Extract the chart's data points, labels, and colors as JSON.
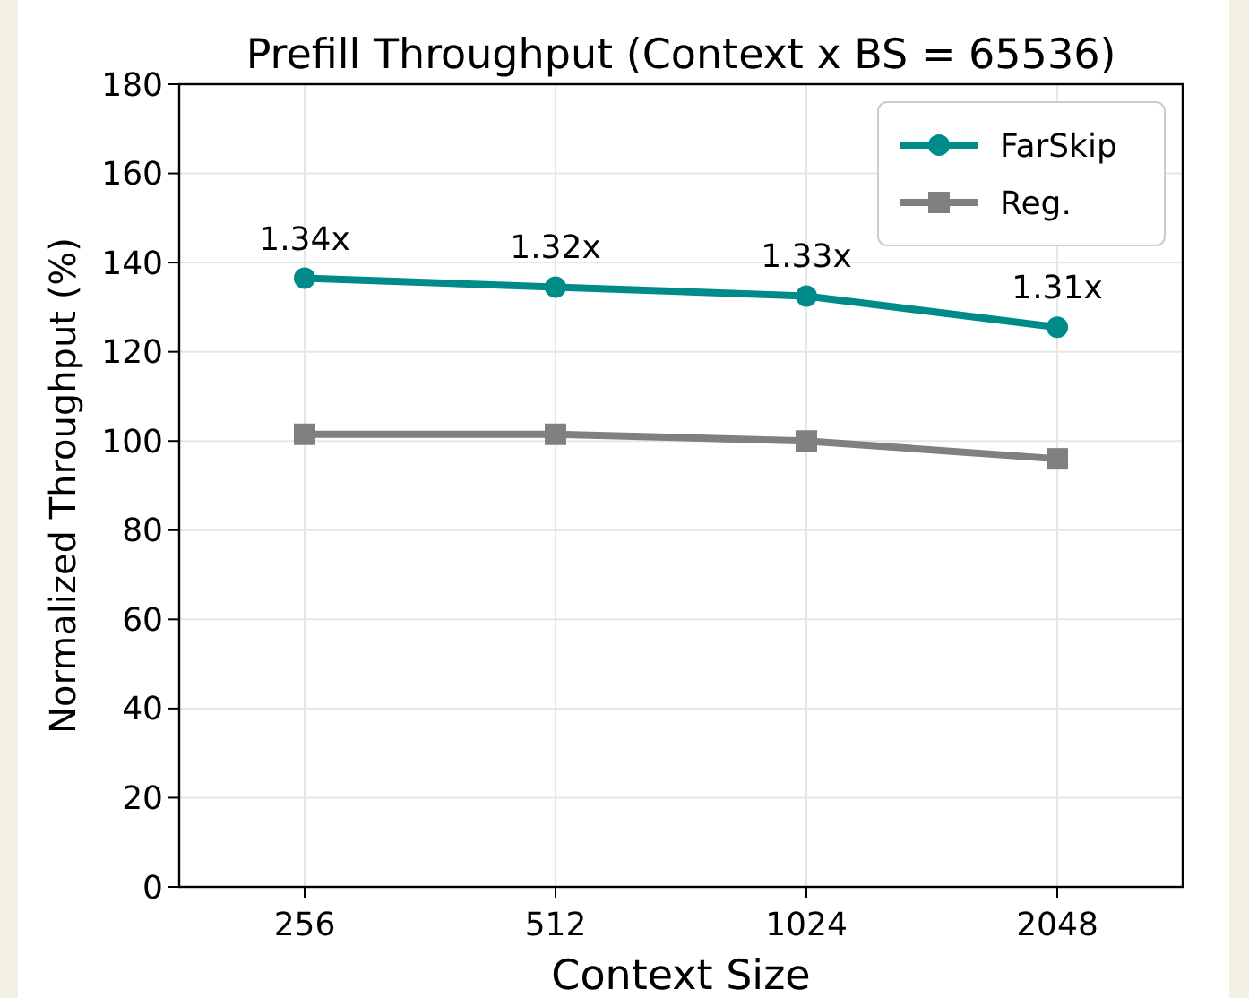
{
  "chart_data": {
    "type": "line",
    "title": "Prefill Throughput (Context x BS = 65536)",
    "xlabel": "Context Size",
    "ylabel": "Normalized Throughput (%)",
    "categories": [
      "256",
      "512",
      "1024",
      "2048"
    ],
    "series": [
      {
        "name": "FarSkip",
        "color": "#008b8b",
        "marker": "circle",
        "values": [
          136.5,
          134.5,
          132.5,
          125.5
        ]
      },
      {
        "name": "Reg.",
        "color": "#808080",
        "marker": "square",
        "values": [
          101.5,
          101.5,
          100,
          96
        ]
      }
    ],
    "ylim": [
      0,
      180
    ],
    "yticks": [
      0,
      20,
      40,
      60,
      80,
      100,
      120,
      140,
      160,
      180
    ],
    "grid": true,
    "legend": "top right",
    "annotations": [
      {
        "text": "1.34x",
        "x": "256",
        "y": 136.5
      },
      {
        "text": "1.32x",
        "x": "512",
        "y": 134.5
      },
      {
        "text": "1.33x",
        "x": "1024",
        "y": 132.5
      },
      {
        "text": "1.31x",
        "x": "2048",
        "y": 125.5
      }
    ]
  }
}
